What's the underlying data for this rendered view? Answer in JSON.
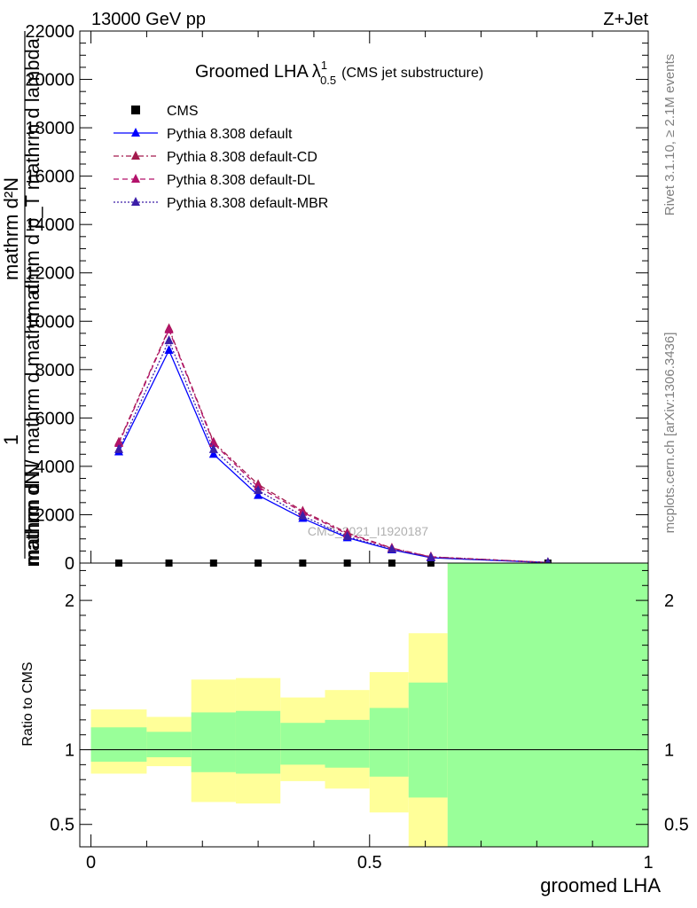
{
  "header": {
    "energy_label": "13000 GeV pp",
    "process_label": "Z+Jet"
  },
  "side_labels": {
    "rivet": "Rivet 3.1.10, ≥ 2.1M events",
    "mcplots": "mcplots.cern.ch [arXiv:1306.3436]"
  },
  "chart_data": [
    {
      "type": "line",
      "title_main": "Groomed LHA",
      "title_symbol": "λ",
      "title_sup": "1",
      "title_sub": "0.5",
      "title_note": "(CMS jet substructure)",
      "ylabel_line1": "mathrm d²N",
      "ylabel_line2": "mathrm d p_T mathrm d lambda",
      "ylabel_line3": "mathrm dN / mathrm d mathrm d",
      "ylabel_prefix": "1",
      "ylabel_extra": "mathrm d N",
      "watermark": "CMS_2021_I1920187",
      "ylim": [
        0,
        22000
      ],
      "xlim": [
        -0.02,
        1.0
      ],
      "yticks": [
        0,
        2000,
        4000,
        6000,
        8000,
        10000,
        12000,
        14000,
        16000,
        18000,
        20000,
        22000
      ],
      "ytick_labels": [
        "0",
        "2000",
        "4000",
        "6000",
        "8000",
        "10000",
        "12000",
        "14000",
        "16000",
        "18000",
        "20000",
        "22000"
      ],
      "legend_position": "top-left",
      "x": [
        0.05,
        0.14,
        0.22,
        0.3,
        0.38,
        0.46,
        0.54,
        0.61,
        0.82
      ],
      "series": [
        {
          "name": "CMS",
          "style": "marker-square",
          "color": "#000000",
          "values": [
            0,
            0,
            0,
            0,
            0,
            0,
            0,
            0,
            0
          ]
        },
        {
          "name": "Pythia 8.308 default",
          "style": "solid",
          "color": "#0000ff",
          "values": [
            4600,
            8800,
            4500,
            2800,
            1850,
            1050,
            550,
            220,
            20
          ]
        },
        {
          "name": "Pythia 8.308 default-CD",
          "style": "dashdot",
          "color": "#a31a4d",
          "values": [
            5000,
            9700,
            5000,
            3250,
            2150,
            1250,
            620,
            260,
            25
          ]
        },
        {
          "name": "Pythia 8.308 default-DL",
          "style": "dashed",
          "color": "#b3126b",
          "values": [
            4950,
            9650,
            4950,
            3150,
            2100,
            1200,
            610,
            250,
            25
          ]
        },
        {
          "name": "Pythia 8.308 default-MBR",
          "style": "dotted",
          "color": "#3c1fa8",
          "values": [
            4700,
            9200,
            4700,
            3000,
            1950,
            1100,
            570,
            230,
            22
          ]
        }
      ]
    },
    {
      "type": "area",
      "ylabel": "Ratio to CMS",
      "xlabel": "groomed LHA",
      "ylim": [
        0.35,
        2.25
      ],
      "xlim": [
        -0.02,
        1.0
      ],
      "yticks": [
        0.5,
        1,
        2
      ],
      "ytick_labels": [
        "0.5",
        "1",
        "2"
      ],
      "xticks": [
        0,
        0.5,
        1
      ],
      "xtick_labels": [
        "0",
        "0.5",
        "1"
      ],
      "bands": [
        {
          "x0": 0.0,
          "x1": 0.1,
          "y_lo": 0.84,
          "y_hi": 1.27,
          "g_lo": 0.92,
          "g_hi": 1.15
        },
        {
          "x0": 0.1,
          "x1": 0.18,
          "y_lo": 0.89,
          "y_hi": 1.22,
          "g_lo": 0.95,
          "g_hi": 1.12
        },
        {
          "x0": 0.18,
          "x1": 0.26,
          "y_lo": 0.65,
          "y_hi": 1.47,
          "g_lo": 0.85,
          "g_hi": 1.25
        },
        {
          "x0": 0.26,
          "x1": 0.34,
          "y_lo": 0.64,
          "y_hi": 1.48,
          "g_lo": 0.84,
          "g_hi": 1.26
        },
        {
          "x0": 0.34,
          "x1": 0.42,
          "y_lo": 0.79,
          "y_hi": 1.35,
          "g_lo": 0.9,
          "g_hi": 1.18
        },
        {
          "x0": 0.42,
          "x1": 0.5,
          "y_lo": 0.74,
          "y_hi": 1.4,
          "g_lo": 0.88,
          "g_hi": 1.2
        },
        {
          "x0": 0.5,
          "x1": 0.57,
          "y_lo": 0.58,
          "y_hi": 1.52,
          "g_lo": 0.82,
          "g_hi": 1.28
        },
        {
          "x0": 0.57,
          "x1": 0.64,
          "y_lo": 0.35,
          "y_hi": 1.78,
          "g_lo": 0.68,
          "g_hi": 1.45
        },
        {
          "x0": 0.64,
          "x1": 1.0,
          "y_lo": 0.35,
          "y_hi": 2.25,
          "g_lo": 0.35,
          "g_hi": 2.25
        }
      ],
      "colors": {
        "yellow": "#ffff99",
        "green": "#99ff99"
      }
    }
  ]
}
